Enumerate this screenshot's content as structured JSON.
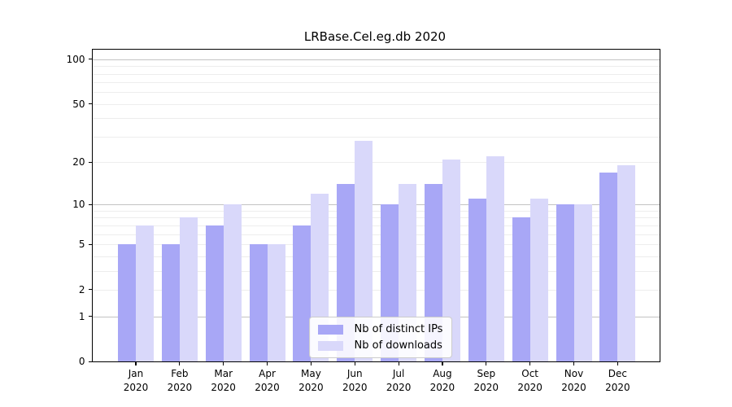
{
  "title": "LRBase.Cel.eg.db 2020",
  "colors": {
    "distinct_ips_bar": "#a8a7f6",
    "downloads_bar": "#d9d8fa",
    "major_gridline": "#c3c3c3",
    "minor_gridline": "#ededed",
    "axis_line": "#000000",
    "text": "#000000",
    "legend_border": "#cccccc",
    "legend_background": "#ffffff"
  },
  "legend": {
    "items": [
      {
        "label": "Nb of distinct IPs"
      },
      {
        "label": "Nb of downloads"
      }
    ]
  },
  "chart_data": {
    "type": "bar",
    "title": "LRBase.Cel.eg.db 2020",
    "categories": [
      "Jan 2020",
      "Feb 2020",
      "Mar 2020",
      "Apr 2020",
      "May 2020",
      "Jun 2020",
      "Jul 2020",
      "Aug 2020",
      "Sep 2020",
      "Oct 2020",
      "Nov 2020",
      "Dec 2020"
    ],
    "x_tick_month_lines": [
      "Jan",
      "Feb",
      "Mar",
      "Apr",
      "May",
      "Jun",
      "Jul",
      "Aug",
      "Sep",
      "Oct",
      "Nov",
      "Dec"
    ],
    "x_tick_year_line": "2020",
    "series": [
      {
        "name": "Nb of distinct IPs",
        "values": [
          5,
          5,
          7,
          5,
          7,
          14,
          10,
          14,
          11,
          8,
          10,
          17
        ]
      },
      {
        "name": "Nb of downloads",
        "values": [
          7,
          8,
          10,
          5,
          12,
          28,
          14,
          21,
          22,
          11,
          10,
          19
        ]
      }
    ],
    "y_scale": "log10(value+1)",
    "y_tick_values": [
      100,
      50,
      20,
      10,
      5,
      2,
      1,
      0
    ],
    "y_major_gridline_values": [
      1,
      10,
      100
    ],
    "y_minor_gridline_values": [
      2,
      3,
      4,
      5,
      6,
      7,
      8,
      9,
      20,
      30,
      40,
      50,
      60,
      70,
      80,
      90
    ],
    "ylim": [
      0,
      117
    ],
    "grid": true,
    "legend_position": "lower center"
  }
}
